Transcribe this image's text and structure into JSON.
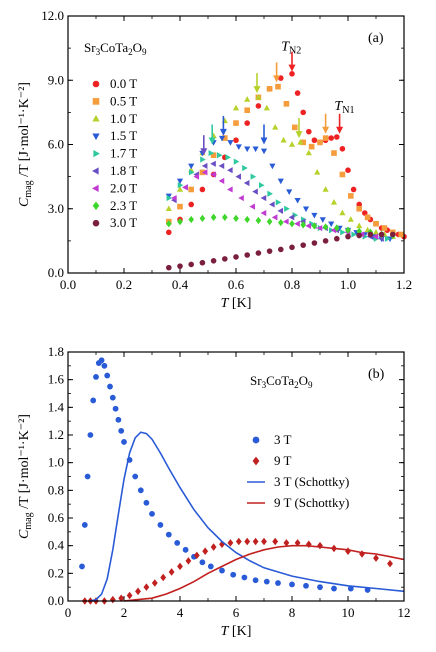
{
  "chart_data": [
    {
      "type": "scatter",
      "panel_label": "(a)",
      "compound": "Sr3CoTa2O9",
      "xlabel": "T [K]",
      "ylabel": "C_mag /T [J·mol⁻¹·K⁻²]",
      "xlim": [
        0.0,
        1.2
      ],
      "ylim": [
        0.0,
        12.0
      ],
      "xticks": [
        "0.0",
        "0.2",
        "0.4",
        "0.6",
        "0.8",
        "1.0",
        "1.2"
      ],
      "yticks": [
        "0.0",
        "3.0",
        "6.0",
        "9.0",
        "12.0"
      ],
      "legend_position": "left",
      "annotations": [
        {
          "text": "T_N2",
          "x": 0.79,
          "y": 10.4
        },
        {
          "text": "T_N1",
          "x": 0.98,
          "y": 7.6
        }
      ],
      "arrows": [
        {
          "x": 0.8,
          "y": 9.4,
          "color": "#ee2222"
        },
        {
          "x": 0.97,
          "y": 6.5,
          "color": "#ee2222"
        },
        {
          "x": 0.745,
          "y": 8.9,
          "color": "#f59c3c"
        },
        {
          "x": 0.92,
          "y": 6.5,
          "color": "#f59c3c"
        },
        {
          "x": 0.675,
          "y": 8.4,
          "color": "#b8d12a"
        },
        {
          "x": 0.825,
          "y": 6.3,
          "color": "#b8d12a"
        },
        {
          "x": 0.555,
          "y": 6.4,
          "color": "#2a5bd7"
        },
        {
          "x": 0.7,
          "y": 6.0,
          "color": "#2a5bd7"
        },
        {
          "x": 0.515,
          "y": 6.0,
          "color": "#2fc9a0"
        },
        {
          "x": 0.485,
          "y": 5.5,
          "color": "#6a4fc4"
        }
      ],
      "series": [
        {
          "name": "0.0 T",
          "color": "#ee2222",
          "marker": "circle",
          "x": [
            0.36,
            0.4,
            0.44,
            0.48,
            0.52,
            0.56,
            0.6,
            0.64,
            0.68,
            0.72,
            0.76,
            0.8,
            0.82,
            0.84,
            0.86,
            0.88,
            0.9,
            0.92,
            0.94,
            0.96,
            0.98,
            1.0,
            1.02,
            1.04,
            1.06,
            1.08,
            1.1,
            1.12,
            1.14,
            1.16,
            1.18,
            1.2
          ],
          "y": [
            1.9,
            2.5,
            3.2,
            3.9,
            4.6,
            5.4,
            6.2,
            7.0,
            7.8,
            8.6,
            9.1,
            9.3,
            8.4,
            7.5,
            6.6,
            6.2,
            6.1,
            6.2,
            6.3,
            6.35,
            5.8,
            4.8,
            3.9,
            3.2,
            2.8,
            2.5,
            2.3,
            2.1,
            2.0,
            1.9,
            1.8,
            1.7
          ]
        },
        {
          "name": "0.5 T",
          "color": "#f59c3c",
          "marker": "square",
          "x": [
            0.36,
            0.4,
            0.44,
            0.48,
            0.52,
            0.56,
            0.6,
            0.64,
            0.68,
            0.72,
            0.75,
            0.78,
            0.81,
            0.84,
            0.87,
            0.9,
            0.92,
            0.95,
            0.98,
            1.01,
            1.04,
            1.07,
            1.1,
            1.13,
            1.16,
            1.19
          ],
          "y": [
            2.4,
            3.1,
            3.9,
            4.7,
            5.5,
            6.3,
            7.0,
            7.6,
            8.2,
            8.6,
            8.7,
            7.9,
            6.8,
            6.1,
            5.9,
            6.1,
            6.3,
            5.6,
            4.6,
            3.6,
            3.0,
            2.6,
            2.3,
            2.1,
            1.9,
            1.8
          ]
        },
        {
          "name": "1.0 T",
          "color": "#b8d12a",
          "marker": "triangle-up",
          "x": [
            0.36,
            0.4,
            0.44,
            0.48,
            0.52,
            0.56,
            0.6,
            0.64,
            0.68,
            0.71,
            0.74,
            0.77,
            0.8,
            0.83,
            0.86,
            0.89,
            0.92,
            0.95,
            0.98,
            1.01,
            1.04,
            1.07,
            1.1,
            1.13,
            1.16
          ],
          "y": [
            3.0,
            3.9,
            4.8,
            5.6,
            6.4,
            7.1,
            7.7,
            8.1,
            8.2,
            7.7,
            6.8,
            6.2,
            6.0,
            6.1,
            5.6,
            4.7,
            3.9,
            3.3,
            2.8,
            2.5,
            2.2,
            2.0,
            1.9,
            1.8,
            1.7
          ]
        },
        {
          "name": "1.5 T",
          "color": "#2a5bd7",
          "marker": "triangle-down",
          "x": [
            0.36,
            0.4,
            0.44,
            0.48,
            0.52,
            0.55,
            0.58,
            0.61,
            0.64,
            0.67,
            0.7,
            0.73,
            0.76,
            0.79,
            0.82,
            0.85,
            0.88,
            0.91,
            0.94,
            0.97,
            1.0,
            1.03,
            1.06,
            1.09,
            1.12,
            1.15
          ],
          "y": [
            3.6,
            4.3,
            5.0,
            5.6,
            6.1,
            6.3,
            6.1,
            5.9,
            5.8,
            5.8,
            5.7,
            5.0,
            4.3,
            3.8,
            3.4,
            3.0,
            2.7,
            2.5,
            2.3,
            2.1,
            2.0,
            1.9,
            1.8,
            1.7,
            1.6,
            1.6
          ]
        },
        {
          "name": "1.7 T",
          "color": "#2fc9a0",
          "marker": "triangle-right",
          "x": [
            0.36,
            0.4,
            0.44,
            0.48,
            0.51,
            0.54,
            0.57,
            0.6,
            0.63,
            0.66,
            0.69,
            0.72,
            0.75,
            0.78,
            0.81,
            0.84,
            0.87,
            0.9,
            0.94,
            0.98,
            1.02,
            1.06,
            1.1,
            1.14
          ],
          "y": [
            3.5,
            4.1,
            4.7,
            5.3,
            5.6,
            5.5,
            5.4,
            5.2,
            4.9,
            4.5,
            4.1,
            3.7,
            3.3,
            3.0,
            2.7,
            2.5,
            2.3,
            2.1,
            2.0,
            1.9,
            1.8,
            1.7,
            1.6,
            1.6
          ]
        },
        {
          "name": "1.8 T",
          "color": "#6a4fc4",
          "marker": "triangle-left",
          "x": [
            0.38,
            0.42,
            0.46,
            0.49,
            0.52,
            0.55,
            0.58,
            0.61,
            0.64,
            0.67,
            0.7,
            0.73,
            0.76,
            0.8,
            0.84,
            0.88,
            0.92,
            0.96,
            1.0,
            1.04,
            1.08,
            1.12
          ],
          "y": [
            3.4,
            4.0,
            4.6,
            5.0,
            5.1,
            5.0,
            4.8,
            4.5,
            4.2,
            3.8,
            3.5,
            3.2,
            2.9,
            2.6,
            2.4,
            2.2,
            2.1,
            2.0,
            1.9,
            1.8,
            1.7,
            1.6
          ]
        },
        {
          "name": "2.0 T",
          "color": "#c13ad1",
          "marker": "triangle-left",
          "x": [
            0.38,
            0.42,
            0.46,
            0.49,
            0.52,
            0.55,
            0.58,
            0.62,
            0.66,
            0.7,
            0.74,
            0.78,
            0.82,
            0.86,
            0.9,
            0.95,
            1.0,
            1.05,
            1.1
          ],
          "y": [
            3.5,
            4.0,
            4.5,
            4.7,
            4.6,
            4.3,
            3.9,
            3.5,
            3.1,
            2.8,
            2.6,
            2.4,
            2.3,
            2.2,
            2.1,
            2.0,
            1.9,
            1.8,
            1.7
          ]
        },
        {
          "name": "2.3 T",
          "color": "#3fd62c",
          "marker": "diamond",
          "x": [
            0.36,
            0.4,
            0.44,
            0.48,
            0.52,
            0.56,
            0.6,
            0.64,
            0.68,
            0.72,
            0.76,
            0.8,
            0.84,
            0.88,
            0.92,
            0.96,
            1.0,
            1.04,
            1.08,
            1.12,
            1.16
          ],
          "y": [
            2.3,
            2.4,
            2.5,
            2.55,
            2.6,
            2.6,
            2.55,
            2.5,
            2.45,
            2.4,
            2.35,
            2.3,
            2.25,
            2.2,
            2.15,
            2.1,
            2.0,
            1.95,
            1.9,
            1.8,
            1.75
          ]
        },
        {
          "name": "3.0 T",
          "color": "#7a1f3d",
          "marker": "circle",
          "x": [
            0.36,
            0.4,
            0.44,
            0.48,
            0.52,
            0.56,
            0.6,
            0.64,
            0.68,
            0.72,
            0.76,
            0.8,
            0.84,
            0.88,
            0.92,
            0.96,
            1.0,
            1.04,
            1.08,
            1.12,
            1.16
          ],
          "y": [
            0.25,
            0.32,
            0.4,
            0.48,
            0.57,
            0.66,
            0.75,
            0.84,
            0.93,
            1.02,
            1.1,
            1.2,
            1.3,
            1.4,
            1.5,
            1.6,
            1.7,
            1.75,
            1.8,
            1.8,
            1.8
          ]
        }
      ]
    },
    {
      "type": "scatter",
      "panel_label": "(b)",
      "compound": "Sr3CoTa2O9",
      "xlabel": "T [K]",
      "ylabel": "C_mag /T [J·mol⁻¹·K⁻²]",
      "xlim": [
        0,
        12
      ],
      "ylim": [
        0.0,
        1.8
      ],
      "xticks": [
        "0",
        "2",
        "4",
        "6",
        "8",
        "10",
        "12"
      ],
      "yticks": [
        "0.0",
        "0.2",
        "0.4",
        "0.6",
        "0.8",
        "1.0",
        "1.2",
        "1.4",
        "1.6",
        "1.8"
      ],
      "legend_position": "right",
      "series": [
        {
          "name": "3 T",
          "color": "#2a5bd7",
          "marker": "circle",
          "x": [
            0.5,
            0.6,
            0.7,
            0.8,
            0.9,
            1.0,
            1.1,
            1.2,
            1.3,
            1.4,
            1.5,
            1.6,
            1.7,
            1.8,
            1.9,
            2.0,
            2.2,
            2.4,
            2.6,
            2.8,
            3.0,
            3.3,
            3.6,
            3.9,
            4.2,
            4.5,
            4.8,
            5.1,
            5.5,
            5.9,
            6.3,
            6.7,
            7.1,
            7.5,
            8.0,
            8.5,
            9.0,
            9.5,
            10.1,
            10.7
          ],
          "y": [
            0.25,
            0.55,
            0.9,
            1.2,
            1.45,
            1.62,
            1.72,
            1.74,
            1.7,
            1.63,
            1.55,
            1.47,
            1.39,
            1.31,
            1.23,
            1.15,
            1.02,
            0.9,
            0.8,
            0.71,
            0.63,
            0.55,
            0.48,
            0.42,
            0.37,
            0.32,
            0.28,
            0.25,
            0.22,
            0.19,
            0.17,
            0.15,
            0.14,
            0.13,
            0.12,
            0.11,
            0.1,
            0.09,
            0.09,
            0.08
          ]
        },
        {
          "name": "9 T",
          "color": "#c0201f",
          "marker": "diamond",
          "x": [
            0.6,
            0.8,
            1.0,
            1.3,
            1.6,
            1.9,
            2.2,
            2.5,
            2.8,
            3.1,
            3.4,
            3.7,
            4.0,
            4.3,
            4.6,
            4.9,
            5.2,
            5.5,
            5.8,
            6.1,
            6.4,
            6.7,
            7.0,
            7.4,
            7.8,
            8.2,
            8.6,
            9.0,
            9.5,
            10.0,
            10.5,
            11.0,
            11.5
          ],
          "y": [
            0.0,
            0.0,
            0.0,
            0.0,
            0.01,
            0.02,
            0.04,
            0.07,
            0.1,
            0.13,
            0.17,
            0.21,
            0.25,
            0.29,
            0.33,
            0.36,
            0.39,
            0.41,
            0.42,
            0.43,
            0.43,
            0.43,
            0.43,
            0.43,
            0.42,
            0.42,
            0.41,
            0.4,
            0.38,
            0.36,
            0.34,
            0.31,
            0.27
          ]
        },
        {
          "name": "3 T  (Schottky)",
          "color": "#2a5bd7",
          "marker": "line",
          "x": [
            0.8,
            1.0,
            1.2,
            1.4,
            1.6,
            1.8,
            2.0,
            2.2,
            2.4,
            2.6,
            2.8,
            3.0,
            3.3,
            3.6,
            4.0,
            4.5,
            5.0,
            5.5,
            6.0,
            6.5,
            7.0,
            8.0,
            9.0,
            10.0,
            11.0,
            12.0
          ],
          "y": [
            0.0,
            0.01,
            0.05,
            0.16,
            0.37,
            0.63,
            0.88,
            1.07,
            1.18,
            1.22,
            1.21,
            1.17,
            1.07,
            0.96,
            0.82,
            0.66,
            0.53,
            0.43,
            0.35,
            0.29,
            0.24,
            0.18,
            0.14,
            0.11,
            0.09,
            0.07
          ]
        },
        {
          "name": "9 T  (Schottky)",
          "color": "#c0201f",
          "marker": "line",
          "x": [
            2.0,
            2.5,
            3.0,
            3.5,
            4.0,
            4.5,
            5.0,
            5.5,
            6.0,
            6.5,
            7.0,
            7.5,
            8.0,
            8.5,
            9.0,
            9.5,
            10.0,
            10.5,
            11.0,
            11.5,
            12.0
          ],
          "y": [
            0.0,
            0.01,
            0.02,
            0.05,
            0.09,
            0.14,
            0.2,
            0.25,
            0.3,
            0.34,
            0.37,
            0.39,
            0.4,
            0.4,
            0.39,
            0.38,
            0.37,
            0.35,
            0.34,
            0.32,
            0.3
          ]
        }
      ]
    }
  ]
}
